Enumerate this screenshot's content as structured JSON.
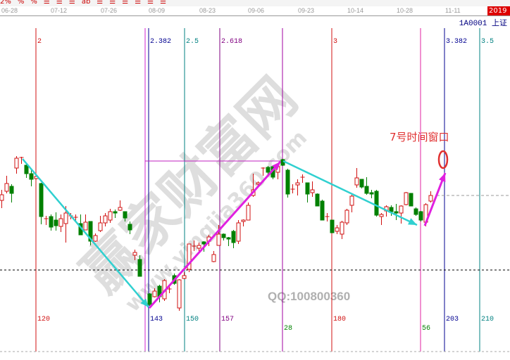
{
  "toolbar": {
    "icons": [
      "2%",
      "%",
      "%",
      "coin",
      "bar",
      "pen",
      "ab",
      "line",
      "line",
      "line",
      "line",
      "line",
      "line"
    ]
  },
  "date_axis": {
    "labels": [
      "06-28",
      "07-12",
      "07-26",
      "08-09",
      "08-23",
      "09-06",
      "09-23",
      "10-14",
      "10-28",
      "11-11"
    ],
    "year": "2019"
  },
  "security": {
    "code": "1A0001 上证"
  },
  "colors": {
    "up": "#d01010",
    "down": "#008000",
    "cyan": "#30d0d0",
    "magenta": "#e020e0"
  },
  "annotation": {
    "label": "7号时间窗口",
    "ellipse": "0"
  },
  "watermark": {
    "main": "赢家财富网",
    "url": "www.yingjia360.com",
    "qq": "QQ:100800360"
  },
  "chart_data": {
    "type": "candlestick",
    "x_labels": [
      "06-28",
      "07-12",
      "07-26",
      "08-09",
      "08-23",
      "09-06",
      "09-23",
      "10-14",
      "10-28",
      "11-11"
    ],
    "candles_ohlc": [
      [
        3015,
        3030,
        3004,
        3023
      ],
      [
        3028,
        3050,
        3025,
        3039
      ],
      [
        3035,
        3038,
        3012,
        3025
      ],
      [
        3061,
        3078,
        3053,
        3075
      ],
      [
        3075,
        3077,
        3067,
        3076
      ],
      [
        3065,
        3068,
        3047,
        3053
      ],
      [
        3053,
        3058,
        3035,
        3045
      ],
      [
        3046,
        3052,
        3045,
        3049
      ],
      [
        3039,
        3040,
        2981,
        2992
      ],
      [
        2988,
        2993,
        2980,
        2989
      ],
      [
        2992,
        2995,
        2972,
        2977
      ],
      [
        2987,
        2998,
        2972,
        2979
      ],
      [
        2978,
        2995,
        2970,
        2989
      ],
      [
        2982,
        3007,
        2955,
        2997
      ],
      [
        2992,
        2997,
        2988,
        2993
      ],
      [
        2990,
        2995,
        2986,
        2991
      ],
      [
        2982,
        2995,
        2966,
        2966
      ],
      [
        2973,
        2995,
        2973,
        2984
      ],
      [
        2985,
        2985,
        2951,
        2957
      ],
      [
        2957,
        2968,
        2956,
        2965
      ],
      [
        2972,
        2993,
        2970,
        2983
      ],
      [
        2983,
        2997,
        2978,
        2993
      ],
      [
        2987,
        3003,
        2983,
        2999
      ],
      [
        2999,
        3002,
        2990,
        2997
      ],
      [
        3001,
        3015,
        3000,
        3005
      ],
      [
        2999,
        2999,
        2985,
        2990
      ],
      [
        2981,
        2985,
        2967,
        2973
      ],
      [
        2937,
        2945,
        2930,
        2941
      ],
      [
        2931,
        2937,
        2907,
        2907
      ],
      null,
      [
        2882,
        2883,
        2865,
        2867
      ],
      [
        2878,
        2890,
        2877,
        2886
      ],
      [
        2893,
        2895,
        2870,
        2878
      ],
      [
        2875,
        2903,
        2872,
        2901
      ],
      [
        2888,
        2893,
        2883,
        2889
      ],
      [
        2908,
        2911,
        2895,
        2897
      ],
      [
        2862,
        2903,
        2858,
        2902
      ],
      [
        2904,
        2913,
        2903,
        2908
      ],
      [
        2917,
        2953,
        2913,
        2953
      ],
      [
        2949,
        2958,
        2943,
        2950
      ],
      [
        2947,
        2955,
        2943,
        2951
      ],
      [
        2956,
        2957,
        2942,
        2953
      ],
      [
        2957,
        2966,
        2950,
        2963
      ],
      [
        2928,
        2943,
        2927,
        2938
      ],
      [
        2951,
        2980,
        2951,
        2967
      ],
      [
        2967,
        2968,
        2958,
        2962
      ],
      [
        2962,
        2963,
        2950,
        2960
      ],
      [
        2971,
        2973,
        2947,
        2955
      ],
      [
        2957,
        2987,
        2953,
        2983
      ],
      [
        2985,
        2988,
        2978,
        2987
      ],
      [
        2987,
        3012,
        2987,
        3008
      ],
      [
        3022,
        3053,
        3020,
        3030
      ],
      [
        3038,
        3042,
        3035,
        3040
      ],
      [
        3060,
        3062,
        3050,
        3061
      ],
      [
        3062,
        3064,
        3050,
        3055
      ],
      [
        3063,
        3065,
        3045,
        3048
      ],
      [
        3055,
        3065,
        3045,
        3063
      ],
      [
        3073,
        3074,
        3064,
        3065
      ],
      [
        3058,
        3060,
        3019,
        3024
      ],
      [
        3030,
        3038,
        3025,
        3031
      ],
      [
        3037,
        3045,
        3022,
        3040
      ],
      [
        3047,
        3052,
        3040,
        3048
      ],
      [
        3040,
        3040,
        3012,
        3024
      ],
      [
        3026,
        3042,
        3020,
        3030
      ],
      [
        3024,
        3025,
        3007,
        3007
      ],
      [
        3014,
        3016,
        2987,
        2987
      ],
      [
        2991,
        2997,
        2985,
        2992
      ],
      [
        2987,
        2987,
        2969,
        2969
      ],
      [
        2971,
        2980,
        2967,
        2976
      ],
      [
        2967,
        2986,
        2960,
        2984
      ],
      [
        2983,
        3003,
        2980,
        3001
      ],
      [
        3008,
        3025,
        2998,
        3021
      ],
      [
        3037,
        3061,
        3033,
        3047
      ],
      [
        3045,
        3045,
        3032,
        3034
      ],
      [
        3035,
        3048,
        3023,
        3025
      ],
      [
        3026,
        3030,
        3018,
        3024
      ],
      [
        3028,
        3030,
        2992,
        2994
      ],
      [
        2992,
        2997,
        2980,
        2995
      ],
      [
        3000,
        3008,
        2992,
        3006
      ],
      [
        3005,
        3008,
        2993,
        2999
      ],
      [
        2999,
        3010,
        2987,
        2997
      ],
      [
        2997,
        3008,
        2982,
        3007
      ],
      [
        3009,
        3027,
        3008,
        3026
      ],
      [
        3025,
        3025,
        3007,
        3007
      ],
      [
        3003,
        3005,
        2993,
        2995
      ],
      [
        2999,
        3000,
        2985,
        2987
      ],
      [
        2984,
        3011,
        2978,
        3009
      ],
      [
        3014,
        3028,
        3012,
        3022
      ]
    ],
    "reference_level_dashed": 2916,
    "current_level_dashed": 3022,
    "fib_time_lines": [
      {
        "top": "2",
        "bottom": "120",
        "color": "#d01010"
      },
      {
        "top": "",
        "bottom": "",
        "color": "#d020d0"
      },
      {
        "top": "2.382",
        "bottom": "143",
        "color": "#000090"
      },
      {
        "top": "2.5",
        "bottom": "150",
        "color": "#008080"
      },
      {
        "top": "2.618",
        "bottom": "157",
        "color": "#800080"
      },
      {
        "top": "",
        "bottom": "28",
        "color": "#a000a0",
        "bottom_color": "#008000"
      },
      {
        "top": "3",
        "bottom": "180",
        "color": "#d01010"
      },
      {
        "top": "",
        "bottom": "56",
        "color": "#e020a0",
        "bottom_color": "#008000"
      },
      {
        "top": "3.382",
        "bottom": "203",
        "color": "#000090"
      },
      {
        "top": "3.5",
        "bottom": "210",
        "color": "#008080"
      }
    ]
  }
}
